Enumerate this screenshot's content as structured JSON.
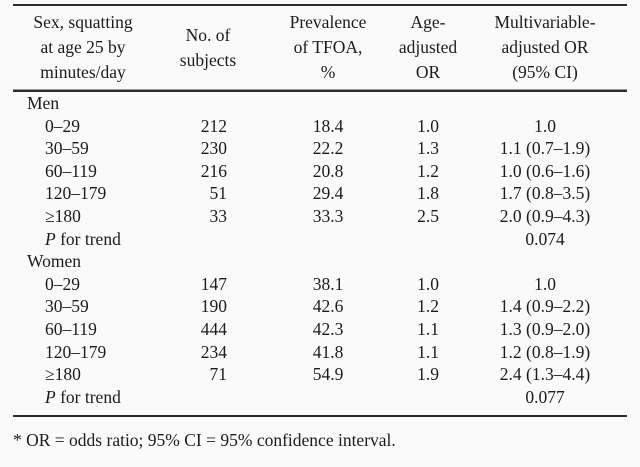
{
  "table": {
    "headers": {
      "exposure": "Sex, squatting\nat age 25 by\nminutes/day",
      "subjects": "No. of\nsubjects",
      "prevalence": "Prevalence\nof TFOA,\n%",
      "age_or": "Age-\nadjusted\nOR",
      "multi_or": "Multivariable-\nadjusted OR\n(95% CI)"
    },
    "p_label_italic": "P",
    "p_label_rest": " for trend",
    "sections": [
      {
        "label": "Men",
        "rows": [
          {
            "category": "0–29",
            "subjects": "212",
            "prevalence": "18.4",
            "age_or": "1.0",
            "multi_or": "1.0"
          },
          {
            "category": "30–59",
            "subjects": "230",
            "prevalence": "22.2",
            "age_or": "1.3",
            "multi_or": "1.1 (0.7–1.9)"
          },
          {
            "category": "60–119",
            "subjects": "216",
            "prevalence": "20.8",
            "age_or": "1.2",
            "multi_or": "1.0 (0.6–1.6)"
          },
          {
            "category": "120–179",
            "subjects": "51",
            "prevalence": "29.4",
            "age_or": "1.8",
            "multi_or": "1.7 (0.8–3.5)"
          },
          {
            "category": "≥180",
            "subjects": "33",
            "prevalence": "33.3",
            "age_or": "2.5",
            "multi_or": "2.0 (0.9–4.3)"
          }
        ],
        "p_for_trend": "0.074"
      },
      {
        "label": "Women",
        "rows": [
          {
            "category": "0–29",
            "subjects": "147",
            "prevalence": "38.1",
            "age_or": "1.0",
            "multi_or": "1.0"
          },
          {
            "category": "30–59",
            "subjects": "190",
            "prevalence": "42.6",
            "age_or": "1.2",
            "multi_or": "1.4 (0.9–2.2)"
          },
          {
            "category": "60–119",
            "subjects": "444",
            "prevalence": "42.3",
            "age_or": "1.1",
            "multi_or": "1.3 (0.9–2.0)"
          },
          {
            "category": "120–179",
            "subjects": "234",
            "prevalence": "41.8",
            "age_or": "1.1",
            "multi_or": "1.2 (0.8–1.9)"
          },
          {
            "category": "≥180",
            "subjects": "71",
            "prevalence": "54.9",
            "age_or": "1.9",
            "multi_or": "2.4 (1.3–4.4)"
          }
        ],
        "p_for_trend": "0.077"
      }
    ]
  },
  "footnote": "* OR = odds ratio; 95% CI = 95% confidence interval.",
  "colors": {
    "text": "#1b1b1b",
    "rule": "#2b2b2b",
    "background": "#fafafa"
  }
}
